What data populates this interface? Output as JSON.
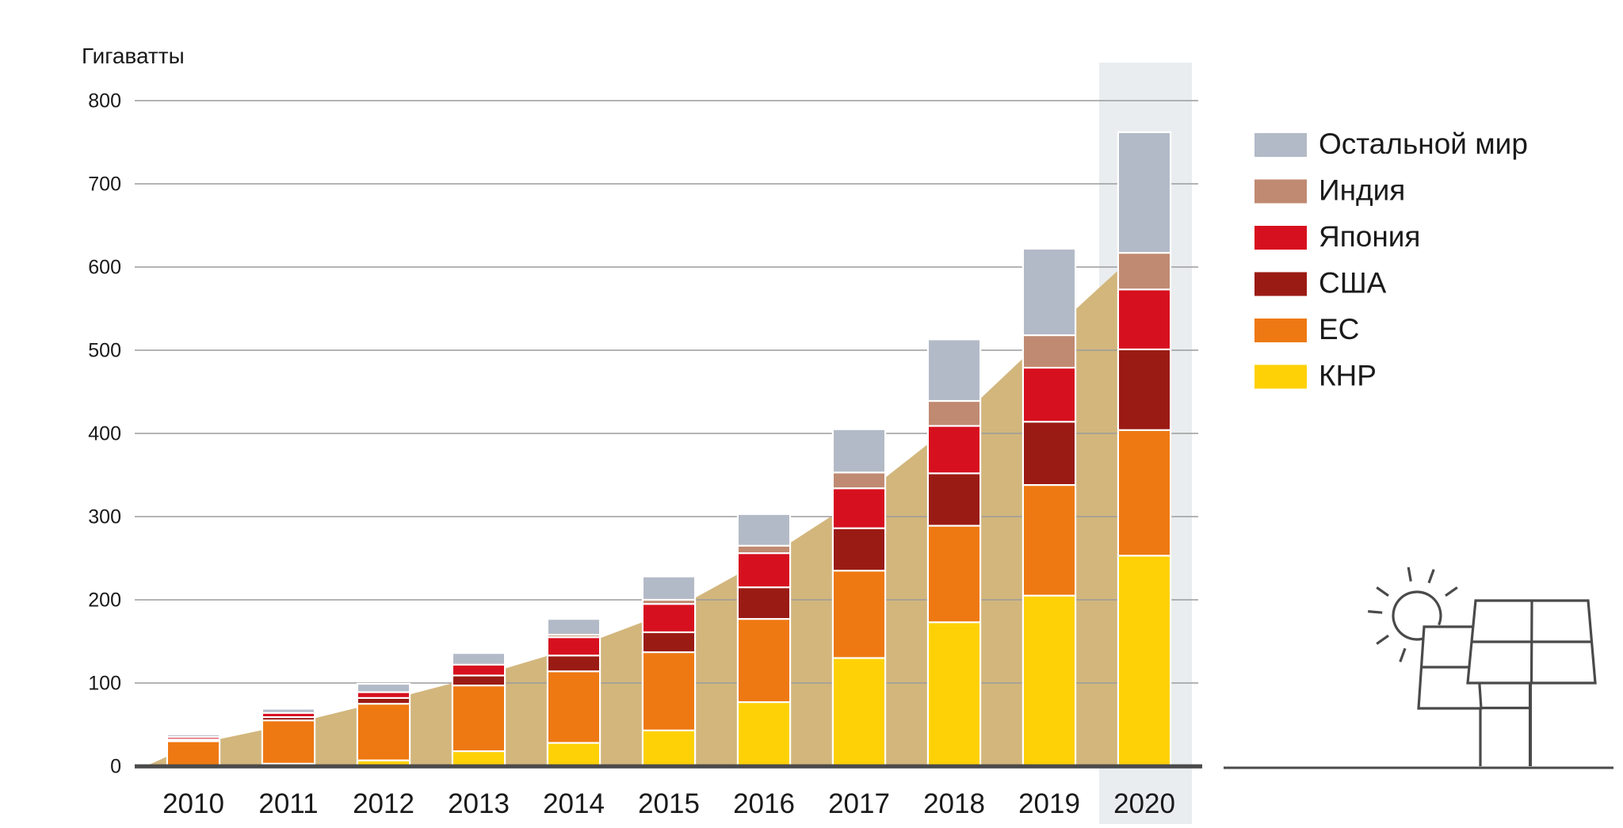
{
  "chart_data": {
    "type": "bar",
    "subtype": "stacked-vertical",
    "title": "",
    "ylabel": "Гигаватты",
    "xlabel": "",
    "categories": [
      "2010",
      "2011",
      "2012",
      "2013",
      "2014",
      "2015",
      "2016",
      "2017",
      "2018",
      "2019",
      "2020"
    ],
    "series": [
      {
        "name": "КНР",
        "color": "#fed106",
        "values": [
          1,
          3,
          7,
          18,
          28,
          43,
          77,
          130,
          173,
          205,
          253
        ]
      },
      {
        "name": "ЕС",
        "color": "#ee7912",
        "values": [
          29,
          52,
          68,
          79,
          86,
          94,
          100,
          105,
          116,
          133,
          151
        ]
      },
      {
        "name": "США",
        "color": "#9a1b14",
        "values": [
          2,
          4,
          7,
          12,
          19,
          24,
          38,
          51,
          63,
          76,
          97
        ]
      },
      {
        "name": "Япония",
        "color": "#d7101f",
        "values": [
          3,
          5,
          7,
          13,
          22,
          34,
          41,
          48,
          57,
          65,
          72
        ]
      },
      {
        "name": "Индия",
        "color": "#c08a72",
        "values": [
          0.5,
          0.5,
          1,
          1,
          3,
          5,
          9,
          19,
          30,
          39,
          44
        ]
      },
      {
        "name": "Остальной мир",
        "color": "#b3bac7",
        "values": [
          1.5,
          3.5,
          8,
          12,
          18,
          27,
          37,
          51,
          73,
          103,
          144
        ]
      }
    ],
    "totals": [
      37,
      68,
      98,
      135,
      176,
      227,
      302,
      404,
      512,
      621,
      761
    ],
    "legend": [
      {
        "label": "Остальной мир",
        "color": "#b3bac7"
      },
      {
        "label": "Индия",
        "color": "#c08a72"
      },
      {
        "label": "Япония",
        "color": "#d7101f"
      },
      {
        "label": "США",
        "color": "#9a1b14"
      },
      {
        "label": "ЕС",
        "color": "#ee7912"
      },
      {
        "label": "КНР",
        "color": "#fed106"
      }
    ],
    "legend_position": "right",
    "y_ticks": [
      0,
      100,
      200,
      300,
      400,
      500,
      600,
      700,
      800
    ],
    "ylim": [
      0,
      845
    ],
    "grid": true,
    "highlighted_category": "2020",
    "trend_area": {
      "description": "tan area behind bars tracing cumulative growth",
      "color": "#d2b67c",
      "values_at_years": [
        26,
        50,
        78,
        108,
        142,
        185,
        248,
        322,
        412,
        520,
        625
      ]
    }
  },
  "colors": {
    "background": "#ffffff",
    "text": "#1a1a1a",
    "gridline": "#9b9b9b",
    "axis": "#4a4a4b",
    "highlight_band": "#e9edef",
    "trend": "#d2b67c",
    "separator": "#ffffff",
    "illustration_stroke": "#4a4a4b"
  },
  "illustration": {
    "name": "sun-and-solar-panels",
    "type": "line-art"
  }
}
